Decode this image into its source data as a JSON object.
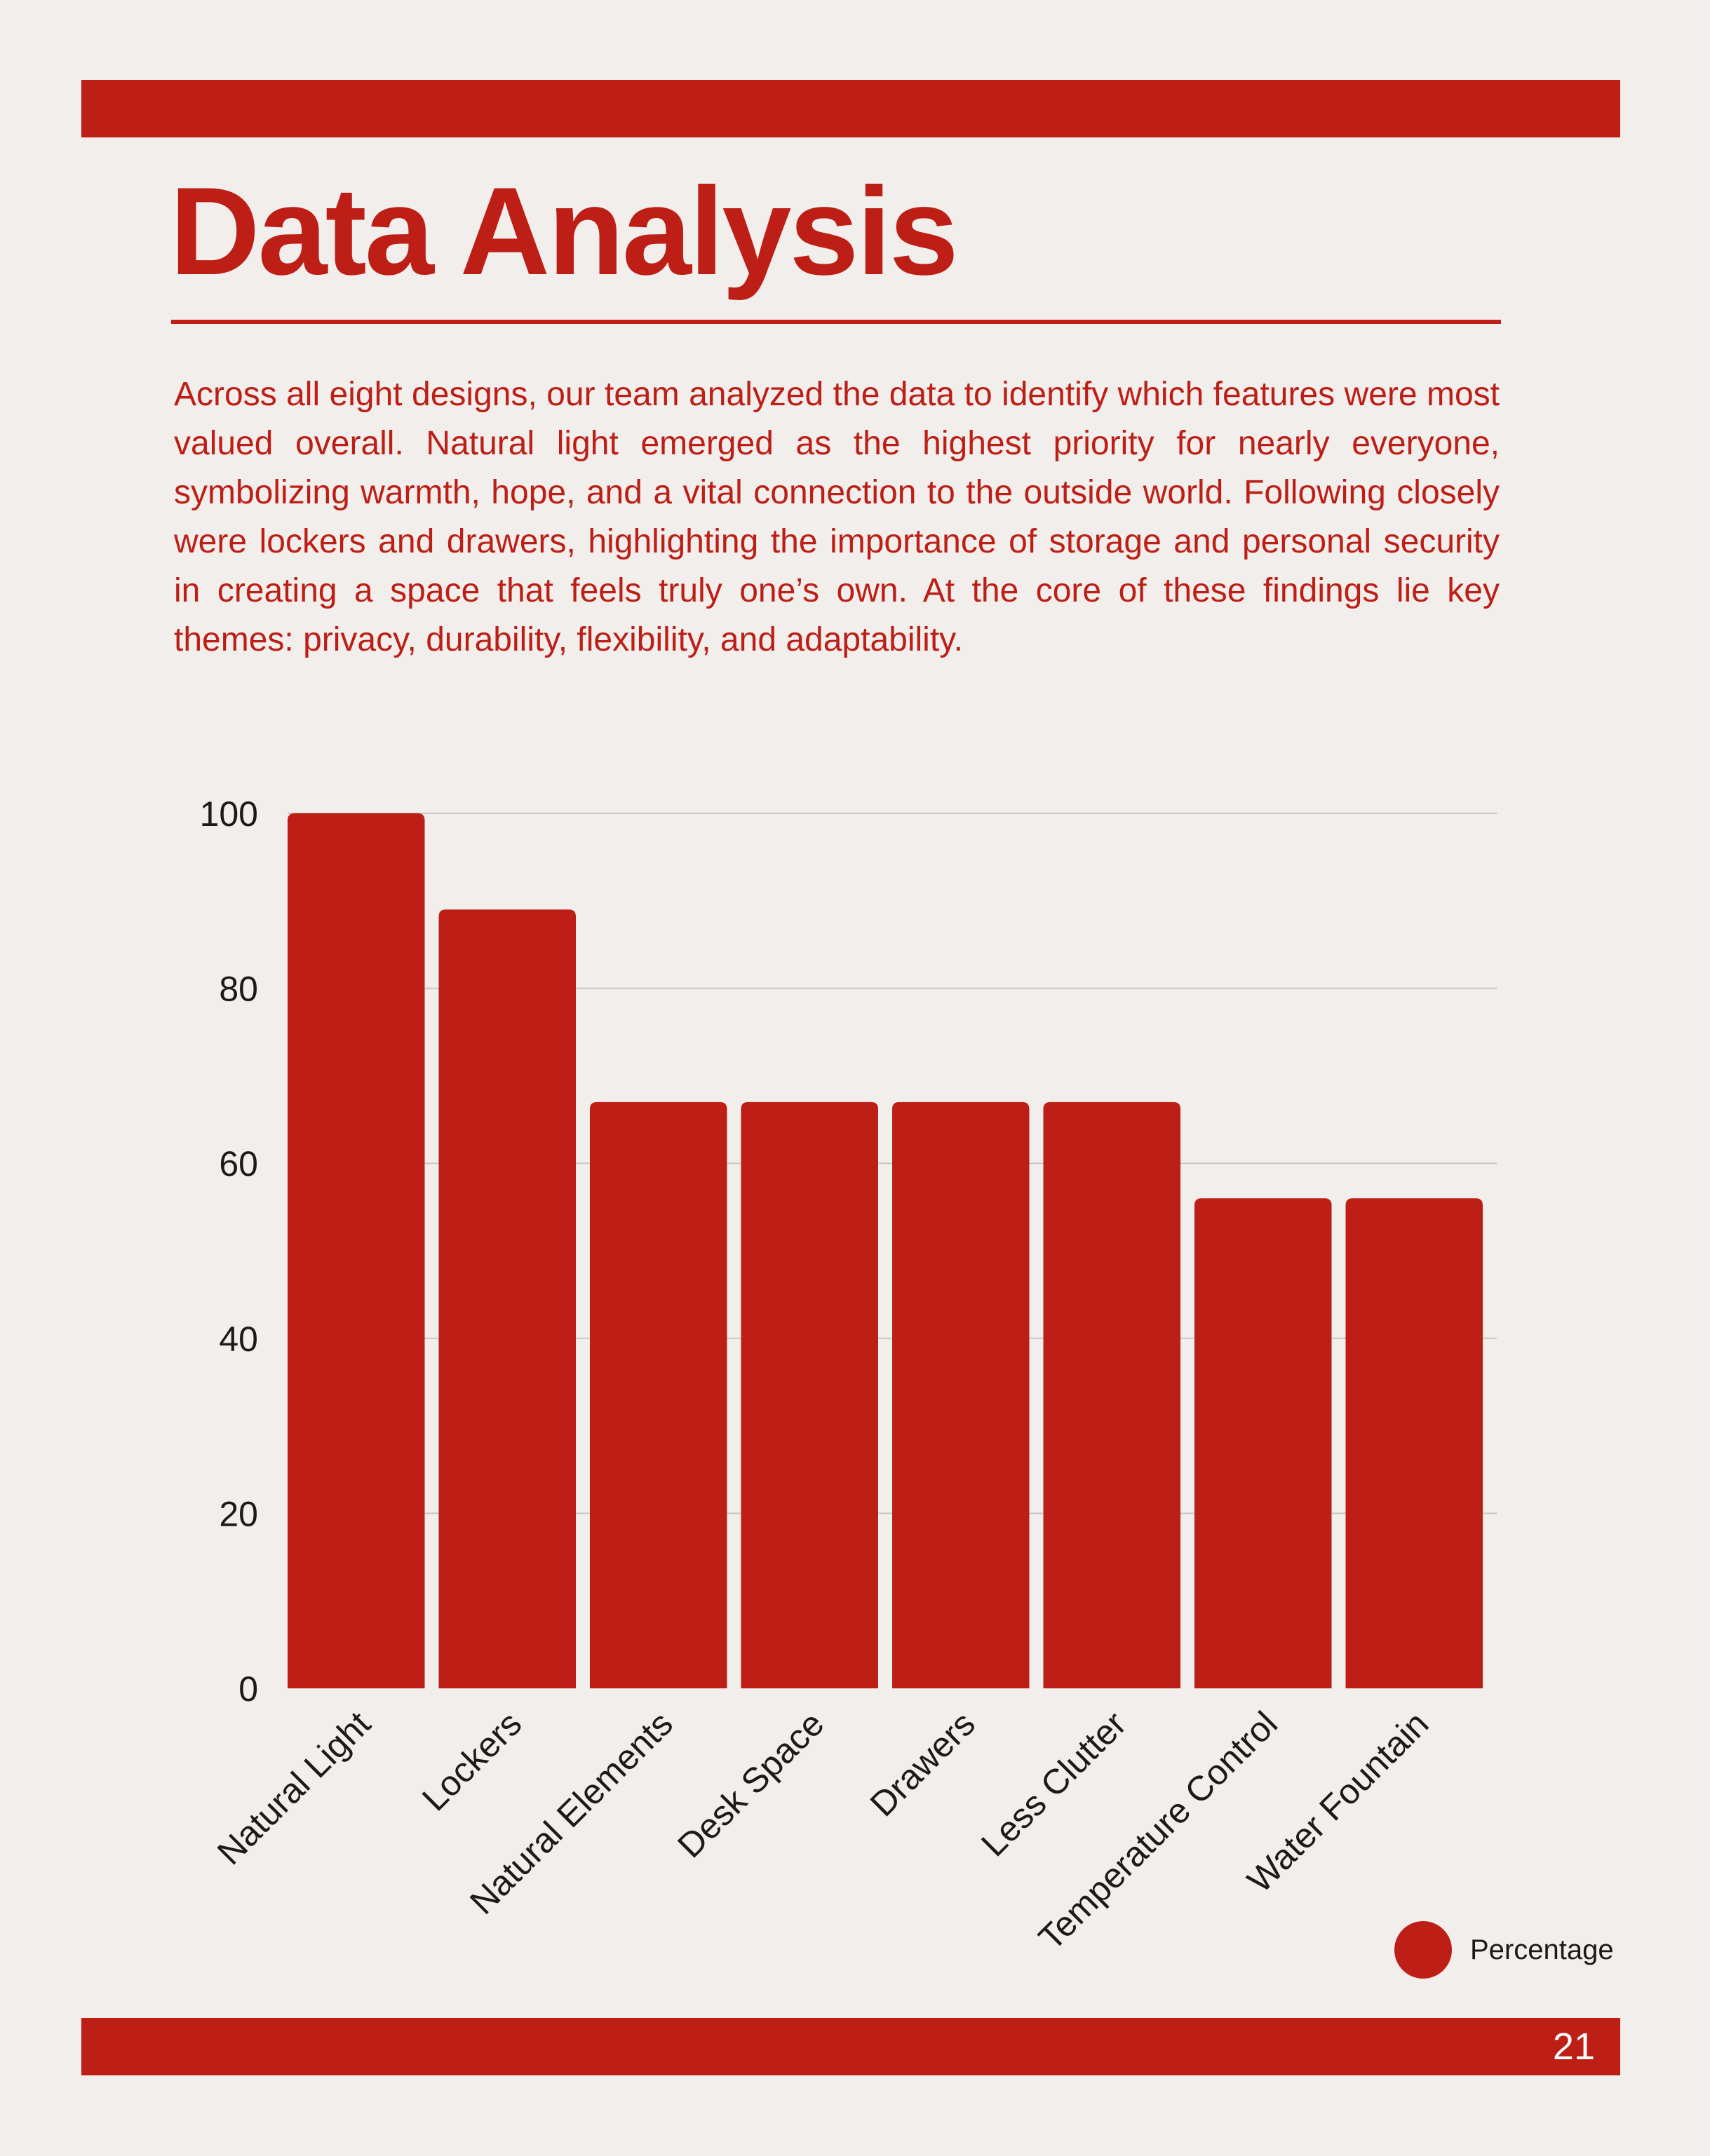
{
  "page": {
    "title": "Data Analysis",
    "paragraph": "Across all eight designs, our team analyzed the data to identify which features were most valued overall. Natural light emerged as the highest priority for nearly everyone, symbolizing warmth, hope, and a vital connection to the outside world. Following closely were lockers and drawers, highlighting the importance of storage and personal security in creating a space that feels truly one’s own. At the core of these findings lie key themes: privacy, durability, flexibility, and adaptability.",
    "page_number": "21"
  },
  "colors": {
    "accent": "#bd1e16",
    "background": "#f1eeeb",
    "gridline": "#c9c6c3",
    "text": "#1a1a1a"
  },
  "chart_data": {
    "type": "bar",
    "categories": [
      "Natural Light",
      "Lockers",
      "Natural Elements",
      "Desk Space",
      "Drawers",
      "Less Clutter",
      "Temperature Control",
      "Water Fountain"
    ],
    "series": [
      {
        "name": "Percentage",
        "values": [
          100,
          89,
          67,
          67,
          67,
          67,
          56,
          56
        ]
      }
    ],
    "ylim": [
      0,
      100
    ],
    "yticks": [
      0,
      20,
      40,
      60,
      80,
      100
    ],
    "grid": true,
    "legend_position": "bottom-right"
  }
}
